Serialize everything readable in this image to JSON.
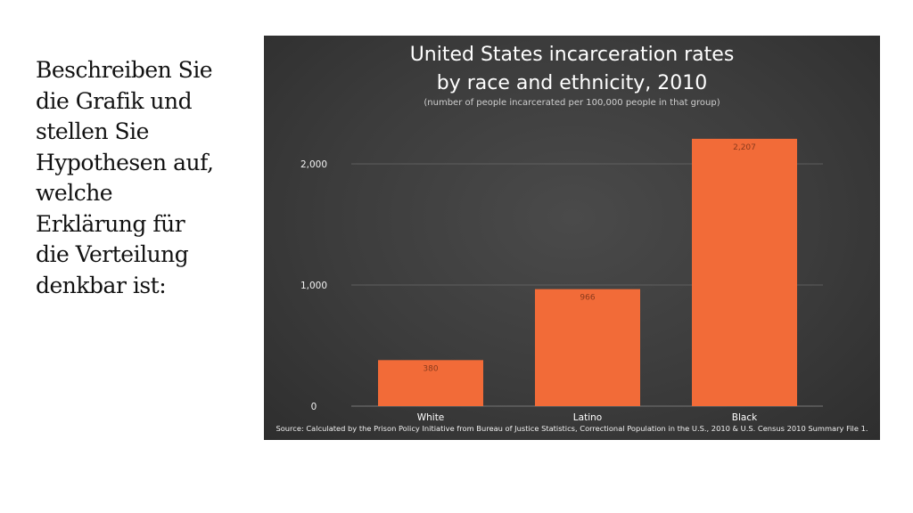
{
  "slide": {
    "prompt_lines": [
      "Beschreiben Sie",
      "die Grafik und",
      "stellen Sie",
      "Hypothesen auf,",
      "welche",
      "Erklärung für",
      "die Verteilung",
      "denkbar ist:"
    ]
  },
  "colors": {
    "bar": "#f26b38",
    "panel": "#3f3f3f",
    "gridline": "#6a6a6a"
  },
  "chart_data": {
    "type": "bar",
    "title_lines": [
      "United States incarceration rates",
      "by race and ethnicity, 2010"
    ],
    "subtitle": "(number of people incarcerated per 100,000 people in that group)",
    "categories": [
      "White",
      "Latino",
      "Black"
    ],
    "values": [
      380,
      966,
      2207
    ],
    "value_labels": [
      "380",
      "966",
      "2,207"
    ],
    "yticks": [
      0,
      1000,
      2000
    ],
    "ytick_labels": [
      "0",
      "1,000",
      "2,000"
    ],
    "ylim": [
      0,
      2400
    ],
    "xlabel": "",
    "ylabel": "",
    "grid": true,
    "source": "Source: Calculated by the Prison Policy Initiative from Bureau of Justice Statistics, Correctional Population in the U.S., 2010 & U.S. Census 2010 Summary File 1."
  }
}
